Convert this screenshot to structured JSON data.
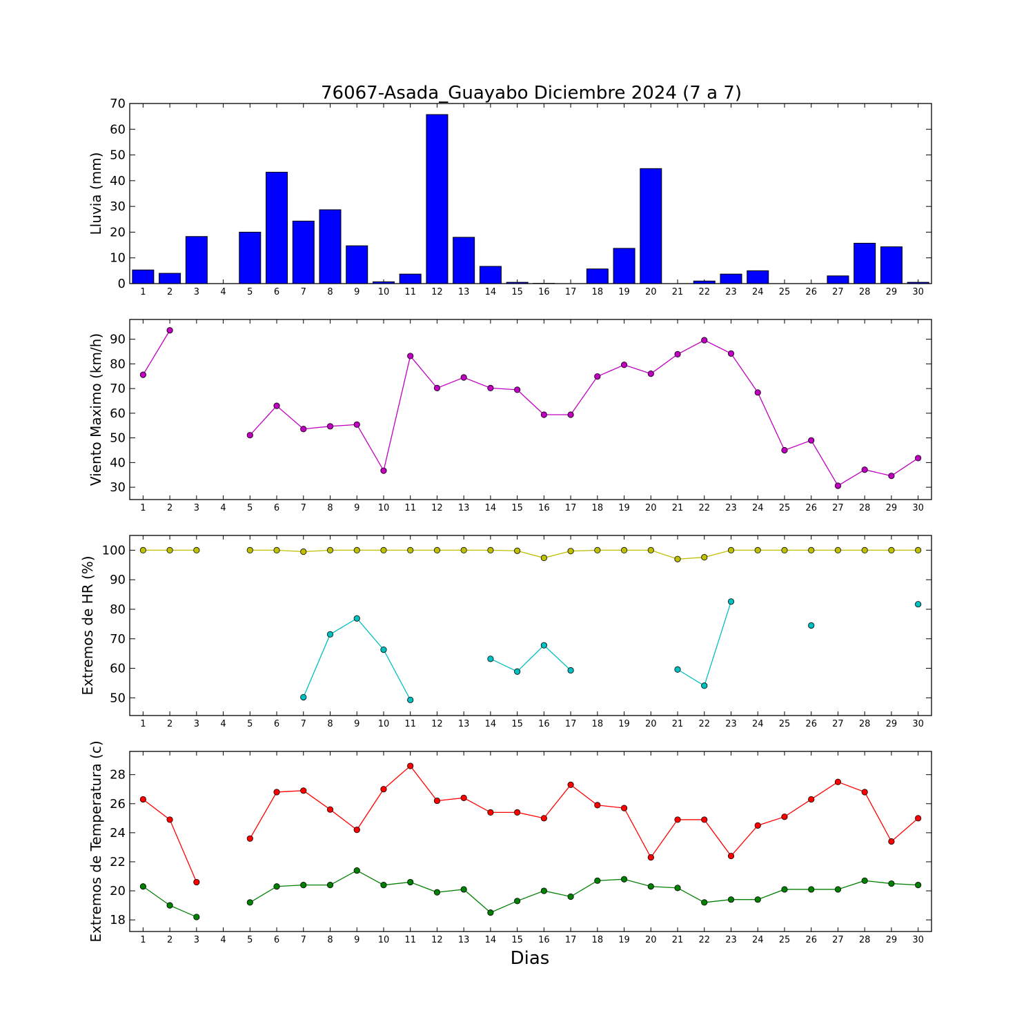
{
  "title": "76067-Asada_Guayabo Diciembre 2024  (7 a 7)",
  "xlabel": "Dias",
  "colors": {
    "rain": "#0000ff",
    "wind": "#bf00bf",
    "hr_max": "#bfbf00",
    "hr_min": "#00bfbf",
    "temp_max": "#ff0000",
    "temp_min": "#008000"
  },
  "chart_data": [
    {
      "type": "bar",
      "ylabel": "Lluvia (mm)",
      "ylim": [
        0,
        70
      ],
      "yticks": [
        0,
        10,
        20,
        30,
        40,
        50,
        60,
        70
      ],
      "x": [
        1,
        2,
        3,
        4,
        5,
        6,
        7,
        8,
        9,
        10,
        11,
        12,
        13,
        14,
        15,
        16,
        17,
        18,
        19,
        20,
        21,
        22,
        23,
        24,
        25,
        26,
        27,
        28,
        29,
        30
      ],
      "series": [
        {
          "values": [
            5.3,
            4.0,
            18.3,
            0,
            20.0,
            43.3,
            24.3,
            28.7,
            14.7,
            0.7,
            3.7,
            65.7,
            18.0,
            6.7,
            0.5,
            0.1,
            0,
            5.7,
            13.7,
            44.7,
            0,
            1.0,
            3.7,
            5.0,
            0,
            0,
            3.0,
            15.7,
            14.3,
            0.5
          ]
        }
      ]
    },
    {
      "type": "line",
      "ylabel": "Viento Maximo (km/h)",
      "ylim": [
        25,
        98
      ],
      "yticks": [
        30,
        40,
        50,
        60,
        70,
        80,
        90
      ],
      "x": [
        1,
        2,
        3,
        4,
        5,
        6,
        7,
        8,
        9,
        10,
        11,
        12,
        13,
        14,
        15,
        16,
        17,
        18,
        19,
        20,
        21,
        22,
        23,
        24,
        25,
        26,
        27,
        28,
        29,
        30
      ],
      "series": [
        {
          "values": [
            75.6,
            93.6,
            null,
            null,
            51.1,
            63.0,
            53.6,
            54.7,
            55.4,
            36.7,
            83.2,
            70.2,
            74.5,
            70.2,
            69.5,
            59.4,
            59.4,
            74.9,
            79.6,
            76.0,
            83.9,
            89.6,
            84.2,
            68.4,
            45.0,
            49.0,
            30.6,
            37.1,
            34.6,
            41.8
          ]
        }
      ]
    },
    {
      "type": "line",
      "ylabel": "Extremos de HR (%)",
      "ylim": [
        44,
        105
      ],
      "yticks": [
        50,
        60,
        70,
        80,
        90,
        100
      ],
      "x": [
        1,
        2,
        3,
        4,
        5,
        6,
        7,
        8,
        9,
        10,
        11,
        12,
        13,
        14,
        15,
        16,
        17,
        18,
        19,
        20,
        21,
        22,
        23,
        24,
        25,
        26,
        27,
        28,
        29,
        30
      ],
      "series": [
        {
          "values": [
            100,
            100,
            100,
            null,
            100,
            100,
            99.5,
            100,
            100,
            100,
            100,
            100,
            100,
            100,
            99.8,
            97.4,
            99.7,
            100,
            100,
            100,
            97.0,
            97.6,
            100,
            100,
            100,
            100,
            100,
            100,
            100,
            100
          ]
        },
        {
          "values": [
            null,
            null,
            null,
            null,
            null,
            null,
            50.2,
            71.5,
            76.9,
            66.3,
            49.3,
            null,
            null,
            63.2,
            58.9,
            67.8,
            59.3,
            null,
            null,
            null,
            59.6,
            54.1,
            82.6,
            null,
            null,
            74.5,
            null,
            null,
            null,
            81.7
          ]
        }
      ]
    },
    {
      "type": "line",
      "ylabel": "Extremos de Temperatura (c)",
      "ylim": [
        17.2,
        29.6
      ],
      "yticks": [
        18,
        20,
        22,
        24,
        26,
        28
      ],
      "x": [
        1,
        2,
        3,
        4,
        5,
        6,
        7,
        8,
        9,
        10,
        11,
        12,
        13,
        14,
        15,
        16,
        17,
        18,
        19,
        20,
        21,
        22,
        23,
        24,
        25,
        26,
        27,
        28,
        29,
        30
      ],
      "series": [
        {
          "values": [
            26.3,
            24.9,
            20.6,
            null,
            23.6,
            26.8,
            26.9,
            25.6,
            24.2,
            27.0,
            28.6,
            26.2,
            26.4,
            25.4,
            25.4,
            25.0,
            27.3,
            25.9,
            25.7,
            22.3,
            24.9,
            24.9,
            22.4,
            24.5,
            25.1,
            26.3,
            27.5,
            26.8,
            23.4,
            25.0
          ]
        },
        {
          "values": [
            20.3,
            19.0,
            18.2,
            null,
            19.2,
            20.3,
            20.4,
            20.4,
            21.4,
            20.4,
            20.6,
            19.9,
            20.1,
            18.5,
            19.3,
            20.0,
            19.6,
            20.7,
            20.8,
            20.3,
            20.2,
            19.2,
            19.4,
            19.4,
            20.1,
            20.1,
            20.1,
            20.7,
            20.5,
            20.4
          ]
        }
      ]
    }
  ]
}
